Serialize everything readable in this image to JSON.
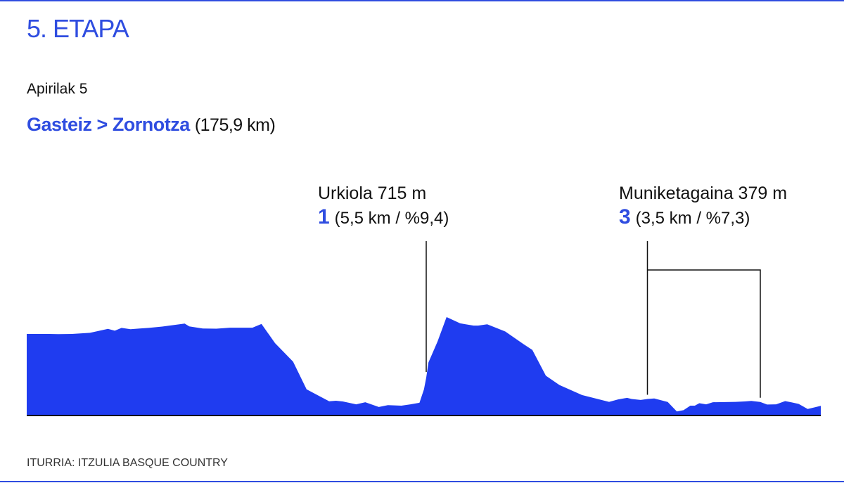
{
  "header": {
    "stage": "5. ETAPA",
    "date": "Apirilak 5",
    "route": "Gasteiz > Zornotza",
    "distance": "(175,9 km)"
  },
  "source": "ITURRIA: ITZULIA BASQUE COUNTRY",
  "colors": {
    "accent": "#2f4de0",
    "profile": "#1f3cf0"
  },
  "climbs": [
    {
      "name": "Urkiola 715 m",
      "category": "1",
      "details": "(5,5 km / %9,4)",
      "km": 88.5
    },
    {
      "name": "Muniketagaina 379 m",
      "category": "3",
      "details": "(3,5 km / %7,3)",
      "km_first": 137.5,
      "km_second": 162.5
    }
  ],
  "chart_data": {
    "type": "area",
    "title": "",
    "xlabel": "",
    "ylabel": "",
    "xlim": [
      0,
      175.9
    ],
    "ylim": [
      0,
      750
    ],
    "grid": false,
    "series": [
      {
        "x": [
          0,
          5,
          7,
          10,
          14,
          18,
          19.5,
          21,
          23,
          25,
          27,
          30,
          35,
          36,
          39,
          42,
          45,
          47,
          50,
          52,
          55,
          59,
          62,
          65,
          67,
          68.5,
          70,
          73,
          75,
          78,
          80,
          83,
          85,
          87,
          88,
          88.5,
          89,
          91,
          93,
          96,
          97,
          99,
          100,
          102,
          106,
          110,
          112,
          115,
          118,
          123,
          129,
          131,
          133,
          134,
          136,
          137.5,
          139,
          142,
          144,
          145.5,
          147,
          148,
          149,
          150.5,
          152,
          157,
          159,
          160.5,
          162.5,
          164,
          166,
          168,
          169.5,
          171,
          173,
          175.9
        ],
        "y": [
          430,
          430,
          429,
          430,
          436,
          457,
          447,
          462,
          455,
          459,
          462,
          469,
          485,
          470,
          459,
          458,
          463,
          463,
          463,
          483,
          382,
          284,
          138,
          100,
          75,
          78,
          74,
          59,
          70,
          45,
          55,
          52,
          59,
          67,
          138,
          200,
          280,
          390,
          519,
          486,
          482,
          474,
          474,
          481,
          443,
          377,
          346,
          210,
          161,
          108,
          72,
          85,
          93,
          87,
          82,
          87,
          90,
          71,
          21,
          28,
          52,
          52,
          65,
          59,
          70,
          72,
          74,
          77,
          71,
          58,
          59,
          76,
          69,
          61,
          34,
          51
        ]
      }
    ],
    "annotations": [
      "Urkiola 715 m",
      "1 (5,5 km / %9,4)",
      "Muniketagaina 379 m",
      "3 (3,5 km / %7,3)"
    ]
  }
}
